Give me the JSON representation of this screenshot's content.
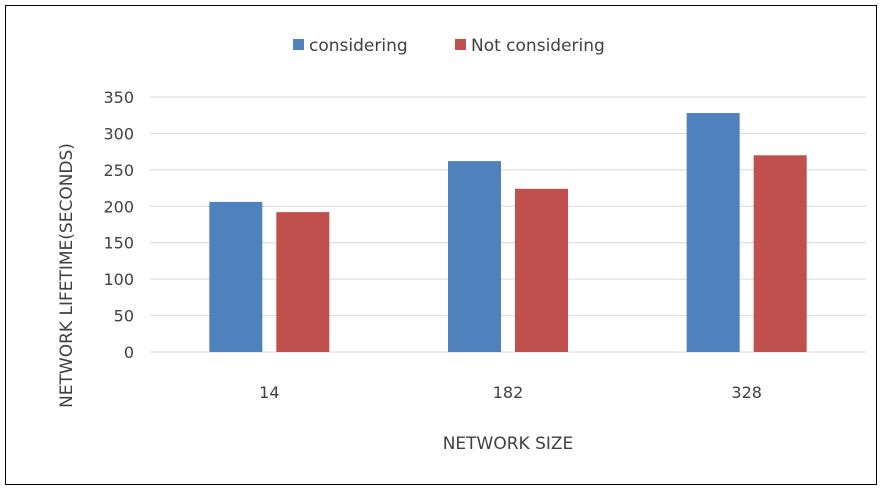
{
  "chart_data": {
    "type": "bar",
    "categories": [
      "14",
      "182",
      "328"
    ],
    "series": [
      {
        "name": "considering",
        "values": [
          206,
          262,
          328
        ],
        "color": "#4F81BD"
      },
      {
        "name": "Not considering",
        "values": [
          192,
          224,
          270
        ],
        "color": "#C0504D"
      }
    ],
    "xlabel": "NETWORK SIZE",
    "ylabel": "NETWORK LIFETIME(SECONDS)",
    "ylim": [
      0,
      350
    ],
    "yticks": [
      0,
      50,
      100,
      150,
      200,
      250,
      300,
      350
    ],
    "grid": true,
    "legend_position": "top"
  }
}
